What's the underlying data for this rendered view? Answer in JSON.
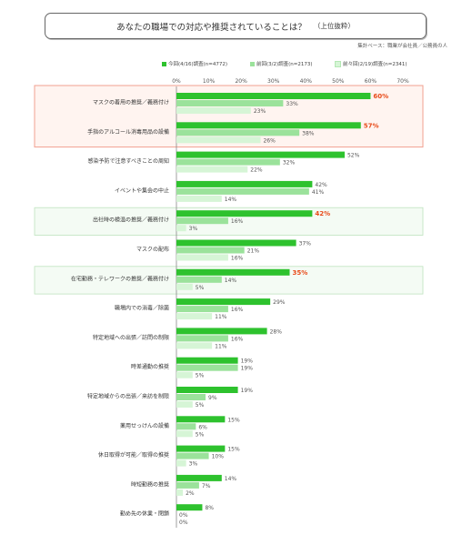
{
  "title": "あなたの職場での対応や推奨されていることは？",
  "title_sub": "（上位抜粋）",
  "basis_note": "集計ベース：職業が会社員／公務員の人",
  "colors": {
    "current": "#2ec22e",
    "previous": "#9be29b",
    "before_previous": "#d6f5d6",
    "highlight": "#e84b1a"
  },
  "chart_data": {
    "type": "bar",
    "orientation": "horizontal",
    "x_ticks": [
      "0%",
      "10%",
      "20%",
      "30%",
      "40%",
      "50%",
      "60%",
      "70%"
    ],
    "xlim": [
      0,
      70
    ],
    "legend_position": "top",
    "series": [
      {
        "name": "今回(4/16)調査(n=4772)",
        "values": [
          60,
          57,
          52,
          42,
          42,
          37,
          35,
          29,
          28,
          19,
          19,
          15,
          15,
          14,
          8
        ]
      },
      {
        "name": "前回(3/2)調査(n=2173)",
        "values": [
          33,
          38,
          32,
          41,
          16,
          21,
          14,
          16,
          16,
          19,
          9,
          6,
          10,
          7,
          0
        ]
      },
      {
        "name": "前々回(2/19)調査(n=2341)",
        "values": [
          23,
          26,
          22,
          14,
          3,
          16,
          5,
          11,
          11,
          5,
          5,
          5,
          3,
          2,
          0
        ]
      }
    ],
    "categories": [
      "マスクの着用の推奨／義務付け",
      "手指のアルコール消毒用品の設備",
      "感染予防で注意すべきことの周知",
      "イベントや集会の中止",
      "出社時の検温の推奨／義務付け",
      "マスクの配布",
      "在宅勤務・テレワークの推奨／義務付け",
      "職場内での消毒／除菌",
      "特定地域への出張／訪問の制限",
      "時差通勤の推奨",
      "特定地域からの出張／来訪を制限",
      "薬用せっけんの設備",
      "休日取得が可能／取得の推奨",
      "時短勤務の推奨",
      "勤め先の休業・閉鎖"
    ],
    "highlight_red": [
      0,
      1
    ],
    "highlight_green": [
      4,
      6
    ]
  }
}
